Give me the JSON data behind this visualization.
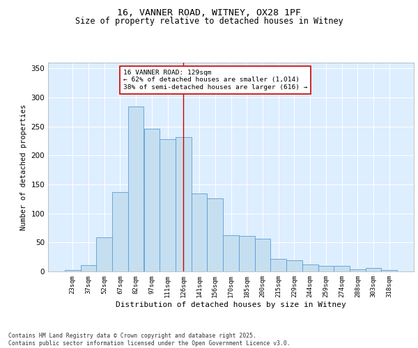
{
  "title_line1": "16, VANNER ROAD, WITNEY, OX28 1PF",
  "title_line2": "Size of property relative to detached houses in Witney",
  "xlabel": "Distribution of detached houses by size in Witney",
  "ylabel": "Number of detached properties",
  "categories": [
    "23sqm",
    "37sqm",
    "52sqm",
    "67sqm",
    "82sqm",
    "97sqm",
    "111sqm",
    "126sqm",
    "141sqm",
    "156sqm",
    "170sqm",
    "185sqm",
    "200sqm",
    "215sqm",
    "229sqm",
    "244sqm",
    "259sqm",
    "274sqm",
    "288sqm",
    "303sqm",
    "318sqm"
  ],
  "values": [
    2,
    11,
    59,
    137,
    285,
    246,
    228,
    232,
    134,
    126,
    62,
    61,
    57,
    22,
    19,
    12,
    10,
    10,
    4,
    6,
    2
  ],
  "bar_color": "#c5dff0",
  "bar_edge_color": "#5b9bd5",
  "vline_x": 7,
  "vline_color": "#cc0000",
  "annotation_text": "16 VANNER ROAD: 129sqm\n← 62% of detached houses are smaller (1,014)\n38% of semi-detached houses are larger (616) →",
  "annotation_box_edge": "#cc0000",
  "background_color": "#ddeeff",
  "ylim": [
    0,
    360
  ],
  "yticks": [
    0,
    50,
    100,
    150,
    200,
    250,
    300,
    350
  ],
  "footer_line1": "Contains HM Land Registry data © Crown copyright and database right 2025.",
  "footer_line2": "Contains public sector information licensed under the Open Government Licence v3.0.",
  "title_fontsize": 9.5,
  "subtitle_fontsize": 8.5
}
